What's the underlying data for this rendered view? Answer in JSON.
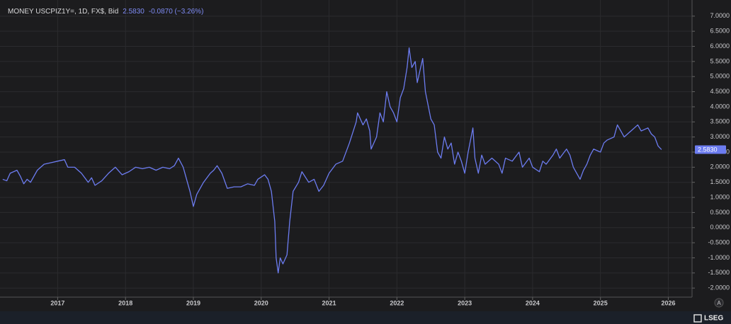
{
  "chart_data": {
    "type": "line",
    "symbol": "MONEY USCPIZ1Y=, 1D, FX$, Bid",
    "last_value": {
      "value": 2.583,
      "label": "2.5830"
    },
    "change": "-0.0870 (−3.26%)",
    "brand": "LSEG",
    "autoscale_button": "A",
    "color": "#6c7cf0",
    "grid": true,
    "xlim": [
      2016.15,
      2026.35
    ],
    "ylim": [
      -2.3,
      7.3
    ],
    "xticks": [
      2017,
      2018,
      2019,
      2020,
      2021,
      2022,
      2023,
      2024,
      2025,
      2026
    ],
    "yticks": [
      {
        "value": -2,
        "label": "-2.0000"
      },
      {
        "value": -1.5,
        "label": "-1.5000"
      },
      {
        "value": -1,
        "label": "-1.0000"
      },
      {
        "value": -0.5,
        "label": "-0.5000"
      },
      {
        "value": 0,
        "label": "0.0000"
      },
      {
        "value": 0.5,
        "label": "0.5000"
      },
      {
        "value": 1,
        "label": "1.0000"
      },
      {
        "value": 1.5,
        "label": "1.5000"
      },
      {
        "value": 2,
        "label": "2.0000"
      },
      {
        "value": 2.5,
        "label": "2.5000"
      },
      {
        "value": 3,
        "label": "3.0000"
      },
      {
        "value": 3.5,
        "label": "3.5000"
      },
      {
        "value": 4,
        "label": "4.0000"
      },
      {
        "value": 4.5,
        "label": "4.5000"
      },
      {
        "value": 5,
        "label": "5.0000"
      },
      {
        "value": 5.5,
        "label": "5.5000"
      },
      {
        "value": 6,
        "label": "6.0000"
      },
      {
        "value": 6.5,
        "label": "6.5000"
      },
      {
        "value": 7,
        "label": "7.0000"
      }
    ],
    "x": [
      2016.19,
      2016.25,
      2016.3,
      2016.4,
      2016.45,
      2016.5,
      2016.55,
      2016.6,
      2016.7,
      2016.8,
      2016.9,
      2017.0,
      2017.1,
      2017.15,
      2017.25,
      2017.35,
      2017.45,
      2017.5,
      2017.55,
      2017.65,
      2017.75,
      2017.85,
      2017.95,
      2018.05,
      2018.15,
      2018.25,
      2018.35,
      2018.45,
      2018.55,
      2018.65,
      2018.72,
      2018.78,
      2018.85,
      2018.9,
      2018.95,
      2019.0,
      2019.05,
      2019.15,
      2019.25,
      2019.3,
      2019.35,
      2019.42,
      2019.5,
      2019.6,
      2019.7,
      2019.8,
      2019.9,
      2019.95,
      2020.05,
      2020.1,
      2020.15,
      2020.2,
      2020.22,
      2020.25,
      2020.28,
      2020.32,
      2020.38,
      2020.42,
      2020.47,
      2020.55,
      2020.6,
      2020.7,
      2020.78,
      2020.85,
      2020.92,
      2021.0,
      2021.1,
      2021.2,
      2021.3,
      2021.4,
      2021.42,
      2021.5,
      2021.55,
      2021.6,
      2021.62,
      2021.7,
      2021.75,
      2021.8,
      2021.85,
      2021.9,
      2021.95,
      2022.0,
      2022.05,
      2022.1,
      2022.15,
      2022.18,
      2022.22,
      2022.27,
      2022.3,
      2022.35,
      2022.38,
      2022.42,
      2022.5,
      2022.55,
      2022.6,
      2022.65,
      2022.7,
      2022.75,
      2022.8,
      2022.85,
      2022.9,
      2022.95,
      2023.0,
      2023.05,
      2023.12,
      2023.15,
      2023.2,
      2023.25,
      2023.3,
      2023.4,
      2023.5,
      2023.55,
      2023.6,
      2023.7,
      2023.8,
      2023.85,
      2023.95,
      2024.0,
      2024.1,
      2024.15,
      2024.2,
      2024.3,
      2024.35,
      2024.4,
      2024.45,
      2024.5,
      2024.55,
      2024.6,
      2024.65,
      2024.7,
      2024.75,
      2024.8,
      2024.85,
      2024.9,
      2025.0,
      2025.05,
      2025.1,
      2025.2,
      2025.25,
      2025.3,
      2025.35,
      2025.45,
      2025.55,
      2025.6,
      2025.7,
      2025.75,
      2025.8,
      2025.85,
      2025.9
    ],
    "values": [
      1.6,
      1.55,
      1.8,
      1.9,
      1.7,
      1.45,
      1.6,
      1.5,
      1.9,
      2.1,
      2.15,
      2.2,
      2.25,
      2.0,
      2.0,
      1.8,
      1.5,
      1.65,
      1.4,
      1.55,
      1.8,
      2.0,
      1.75,
      1.85,
      2.0,
      1.95,
      2.0,
      1.9,
      2.0,
      1.95,
      2.05,
      2.3,
      2.0,
      1.6,
      1.2,
      0.7,
      1.1,
      1.5,
      1.8,
      1.9,
      2.05,
      1.8,
      1.3,
      1.35,
      1.35,
      1.45,
      1.4,
      1.6,
      1.75,
      1.6,
      1.2,
      0.2,
      -1.0,
      -1.5,
      -1.0,
      -1.2,
      -0.9,
      0.2,
      1.2,
      1.5,
      1.85,
      1.5,
      1.6,
      1.2,
      1.4,
      1.8,
      2.1,
      2.2,
      2.8,
      3.5,
      3.8,
      3.4,
      3.6,
      3.2,
      2.6,
      3.0,
      3.8,
      3.5,
      4.5,
      4.0,
      3.8,
      3.5,
      4.3,
      4.6,
      5.3,
      5.95,
      5.3,
      5.5,
      4.8,
      5.3,
      5.6,
      4.5,
      3.6,
      3.4,
      2.5,
      2.3,
      3.0,
      2.6,
      2.8,
      2.1,
      2.5,
      2.2,
      1.8,
      2.5,
      3.3,
      2.3,
      1.8,
      2.4,
      2.1,
      2.3,
      2.1,
      1.8,
      2.3,
      2.2,
      2.5,
      2.0,
      2.3,
      2.0,
      1.85,
      2.2,
      2.1,
      2.4,
      2.6,
      2.3,
      2.45,
      2.6,
      2.4,
      2.0,
      1.8,
      1.6,
      1.9,
      2.1,
      2.4,
      2.6,
      2.5,
      2.8,
      2.9,
      3.0,
      3.4,
      3.2,
      3.0,
      3.2,
      3.4,
      3.2,
      3.3,
      3.1,
      3.0,
      2.7,
      2.583
    ]
  }
}
